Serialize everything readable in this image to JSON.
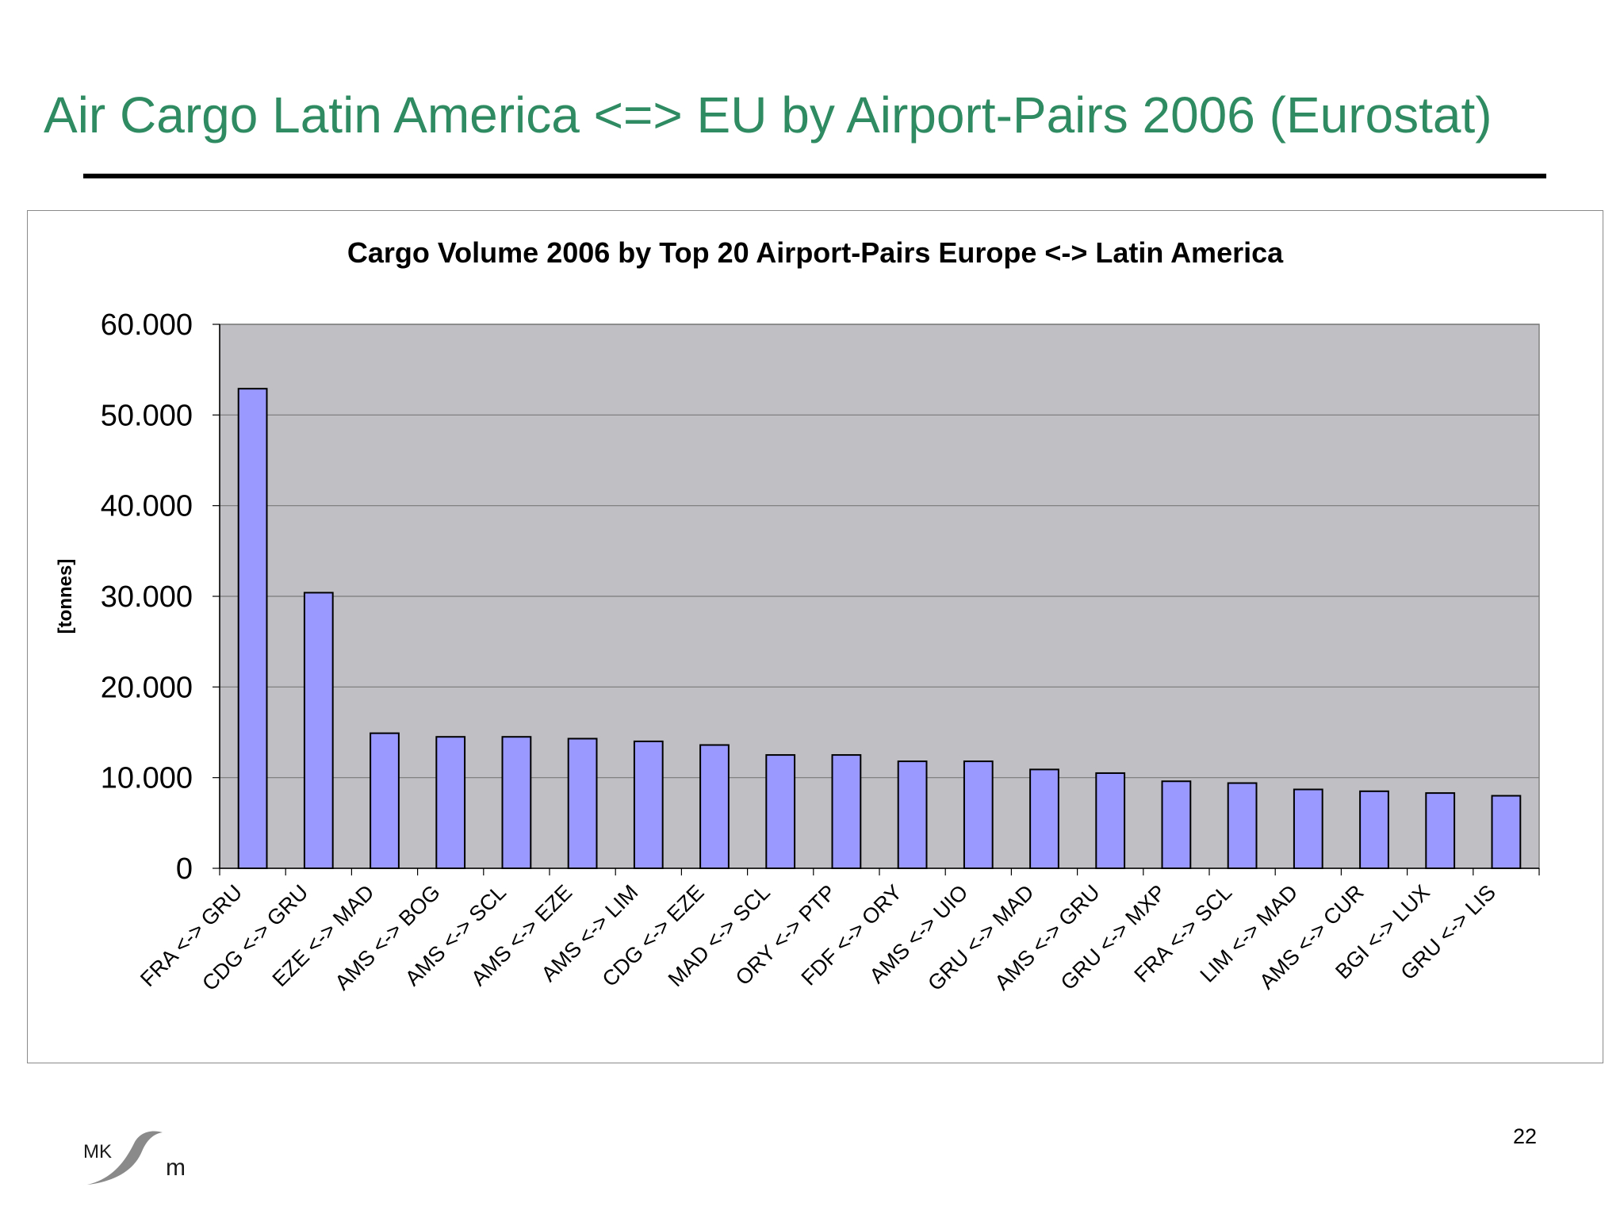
{
  "slide": {
    "title": "Air Cargo Latin America <=> EU by Airport-Pairs 2006 (Eurostat)",
    "page_number": "22",
    "title_color": "#2e8b62"
  },
  "logo": {
    "text_left": "MK",
    "text_right": "m",
    "icon": "mksm-logo-icon"
  },
  "chart_data": {
    "type": "bar",
    "title": "Cargo Volume 2006 by Top 20 Airport-Pairs Europe <-> Latin America",
    "xlabel": "",
    "ylabel": "[tonnes]",
    "ylim": [
      0,
      60000
    ],
    "yticks": [
      0,
      10000,
      20000,
      30000,
      40000,
      50000,
      60000
    ],
    "ytick_labels": [
      "0",
      "10.000",
      "20.000",
      "30.000",
      "40.000",
      "50.000",
      "60.000"
    ],
    "grid": true,
    "legend": "none",
    "plot_background": "#c0bfc4",
    "bar_color": "#9999ff",
    "categories": [
      "FRA <-> GRU",
      "CDG <-> GRU",
      "EZE <-> MAD",
      "AMS <-> BOG",
      "AMS <-> SCL",
      "AMS <-> EZE",
      "AMS <-> LIM",
      "CDG <-> EZE",
      "MAD <-> SCL",
      "ORY <-> PTP",
      "FDF <-> ORY",
      "AMS <-> UIO",
      "GRU <-> MAD",
      "AMS <-> GRU",
      "GRU <-> MXP",
      "FRA <-> SCL",
      "LIM <-> MAD",
      "AMS <-> CUR",
      "BGI <-> LUX",
      "GRU <-> LIS"
    ],
    "values": [
      52900,
      30400,
      14900,
      14500,
      14500,
      14300,
      14000,
      13600,
      12500,
      12500,
      11800,
      11800,
      10900,
      10500,
      9600,
      9400,
      8700,
      8500,
      8300,
      8000
    ]
  }
}
